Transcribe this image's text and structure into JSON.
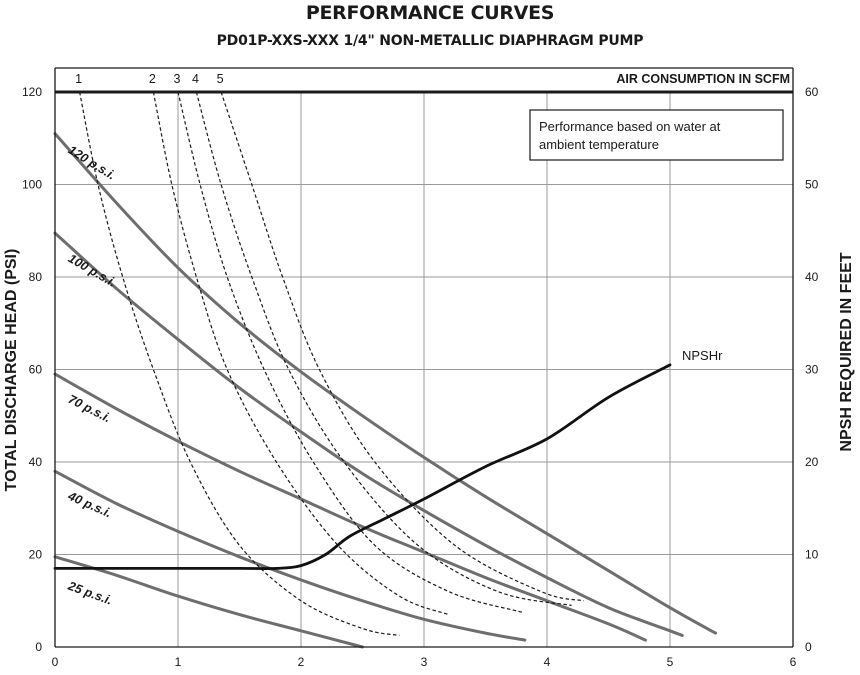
{
  "chart_data": {
    "type": "line",
    "title": "PERFORMANCE CURVES",
    "subtitle": "PD01P-XXS-XXX  1/4\" NON-METALLIC DIAPHRAGM PUMP",
    "xlabel": "",
    "ylabel": "TOTAL DISCHARGE HEAD (PSI)",
    "y2label": "NPSH REQUIRED IN FEET",
    "top_axis_label": "AIR CONSUMPTION IN SCFM",
    "xlim": [
      0,
      6
    ],
    "ylim": [
      0,
      120
    ],
    "y2lim": [
      0,
      60
    ],
    "x_ticks": [
      "0",
      "1",
      "2",
      "3",
      "4",
      "5",
      "6"
    ],
    "y_ticks": [
      "0",
      "20",
      "40",
      "60",
      "80",
      "100",
      "120"
    ],
    "y2_ticks": [
      "0",
      "10",
      "20",
      "30",
      "40",
      "50",
      "60"
    ],
    "grid": true,
    "annotation": "Performance based on water at ambient temperature",
    "air_pressure_curves": [
      {
        "name": "120 p.s.i.",
        "x": [
          0,
          0.5,
          1.0,
          1.5,
          2.0,
          2.5,
          3.0,
          3.5,
          4.0,
          4.5,
          5.0,
          5.37
        ],
        "y": [
          111,
          96,
          82,
          70,
          59.5,
          50,
          41,
          32.5,
          24.5,
          16.5,
          8.5,
          3
        ]
      },
      {
        "name": "100 p.s.i.",
        "x": [
          0,
          0.5,
          1.0,
          1.5,
          2.0,
          2.5,
          3.0,
          3.5,
          4.0,
          4.5,
          5.0,
          5.1
        ],
        "y": [
          89.5,
          77.5,
          66.5,
          56,
          46.5,
          37.5,
          29.5,
          22,
          15,
          8.5,
          3.5,
          2.5
        ]
      },
      {
        "name": "70 p.s.i.",
        "x": [
          0,
          0.5,
          1.0,
          1.5,
          2.0,
          2.5,
          3.0,
          3.5,
          4.0,
          4.5,
          4.8
        ],
        "y": [
          59,
          51.5,
          44.5,
          38,
          32,
          26,
          20.5,
          15,
          10,
          5,
          1.5
        ]
      },
      {
        "name": "40 p.s.i.",
        "x": [
          0,
          0.5,
          1.0,
          1.5,
          2.0,
          2.5,
          3.0,
          3.5,
          3.82
        ],
        "y": [
          38,
          31,
          25,
          19.5,
          14.5,
          10,
          6,
          3,
          1.5
        ]
      },
      {
        "name": "25 p.s.i.",
        "x": [
          0,
          0.5,
          1.0,
          1.5,
          2.0,
          2.5
        ],
        "y": [
          19.5,
          15.5,
          11,
          7,
          3.5,
          0
        ]
      }
    ],
    "air_consumption_curves": [
      {
        "name": "1",
        "x": [
          0.2,
          0.35,
          0.55,
          0.8,
          1.1,
          1.5,
          2.0,
          2.5,
          2.8
        ],
        "y": [
          120,
          100,
          80,
          60,
          40,
          22,
          10,
          4,
          2.5
        ]
      },
      {
        "name": "2",
        "x": [
          0.8,
          0.95,
          1.15,
          1.4,
          1.8,
          2.3,
          2.8,
          3.2
        ],
        "y": [
          120,
          100,
          80,
          60,
          40,
          22,
          11,
          7
        ]
      },
      {
        "name": "3",
        "x": [
          1.0,
          1.18,
          1.4,
          1.7,
          2.1,
          2.6,
          3.2,
          3.8
        ],
        "y": [
          120,
          100,
          80,
          60,
          40,
          22,
          12,
          7.5
        ]
      },
      {
        "name": "4",
        "x": [
          1.15,
          1.35,
          1.6,
          1.9,
          2.35,
          2.95,
          3.6,
          4.2
        ],
        "y": [
          120,
          100,
          80,
          60,
          40,
          22,
          12,
          9
        ]
      },
      {
        "name": "5",
        "x": [
          1.35,
          1.6,
          1.85,
          2.15,
          2.6,
          3.25,
          3.95,
          4.3
        ],
        "y": [
          120,
          100,
          80,
          60,
          40,
          22,
          12,
          10
        ]
      }
    ],
    "npshr_curve": {
      "name": "NPSHr",
      "x": [
        0,
        0.5,
        1.0,
        1.5,
        1.8,
        2.0,
        2.2,
        2.4,
        2.7,
        3.0,
        3.5,
        4.0,
        4.5,
        5.0
      ],
      "y_feet": [
        8.5,
        8.5,
        8.5,
        8.5,
        8.5,
        8.8,
        10,
        12,
        14,
        16,
        19.5,
        22.5,
        27,
        30.5
      ]
    }
  }
}
